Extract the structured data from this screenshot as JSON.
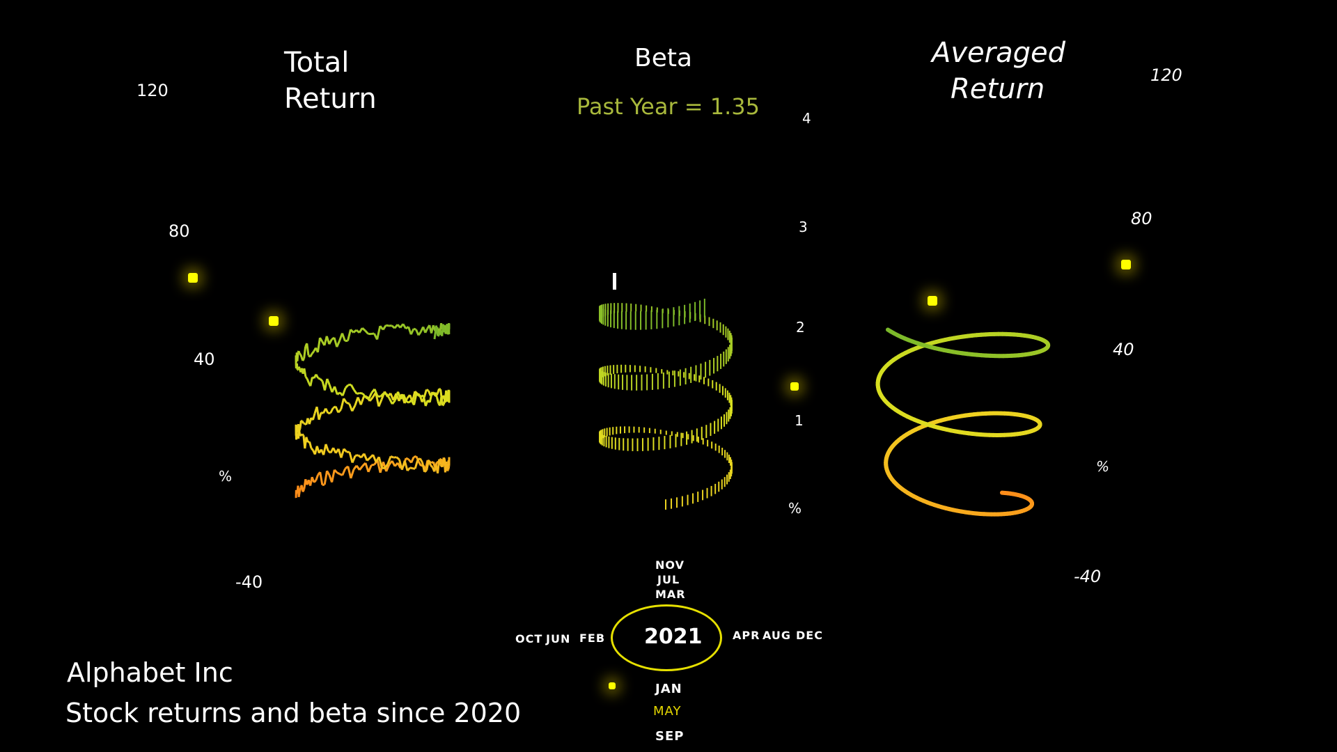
{
  "chart_data": [
    {
      "type": "line",
      "title": "Total Return",
      "title_lines": [
        "Total",
        "Return"
      ],
      "y_ticks": [
        "120",
        "80",
        "40",
        "%",
        "-40"
      ],
      "ylim": [
        -40,
        120
      ],
      "style": "3D helix, color shifts from orange (2020) to green (latest)",
      "series": [
        {
          "values": [
            0,
            -8,
            5,
            12,
            -6,
            10,
            18,
            30,
            22,
            35,
            48,
            52,
            61,
            58,
            64,
            70,
            66,
            59,
            55
          ]
        }
      ]
    },
    {
      "type": "bar",
      "title": "Beta",
      "subtitle": "Past Year = 1.35",
      "y_ticks": [
        "4",
        "3",
        "2",
        "1",
        "%"
      ],
      "ylim": [
        0,
        4
      ],
      "style": "3D helix of vertical bars",
      "series": [
        {
          "values": [
            1.1,
            1.15,
            1.2,
            1.25,
            1.3,
            1.35
          ]
        }
      ]
    },
    {
      "type": "line",
      "title": "Averaged Return",
      "title_lines": [
        "Averaged",
        "Return"
      ],
      "y_ticks": [
        "120",
        "80",
        "40",
        "%",
        "-40"
      ],
      "ylim": [
        -40,
        120
      ],
      "style": "smoothed 3D helix"
    }
  ],
  "timeline": {
    "year": "2021",
    "months_top": [
      "NOV",
      "JUL",
      "MAR"
    ],
    "months_left": [
      "OCT",
      "JUN",
      "FEB"
    ],
    "months_right": [
      "APR",
      "AUG",
      "DEC"
    ],
    "months_bottom": [
      "JAN",
      "MAY",
      "SEP"
    ],
    "highlight_month_color": "#e6d800"
  },
  "caption": {
    "company": "Alphabet Inc",
    "subtitle": "Stock returns and beta since 2020"
  },
  "colors": {
    "background": "#000000",
    "marker": "#ffff00",
    "early": "#ff8c1a",
    "mid": "#e6e020",
    "late": "#7ab82a",
    "beta_sub": "#a8b83c"
  }
}
